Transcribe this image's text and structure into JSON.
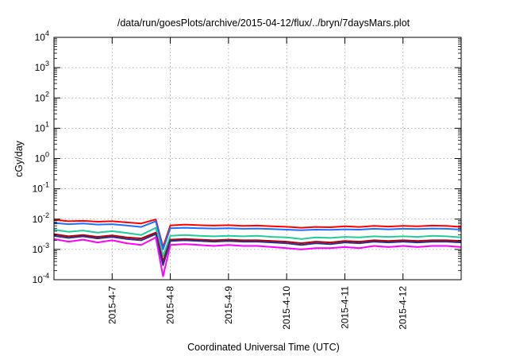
{
  "chart_data": {
    "type": "line",
    "title": "/data/run/goesPlots/archive/2015-04-12/flux/../bryn/7daysMars.plot",
    "xlabel": "Coordinated Universal Time (UTC)",
    "ylabel": "cGy/day",
    "y_scale": "log",
    "ylim": [
      0.0001,
      10000
    ],
    "y_ticks": [
      {
        "base": "10",
        "exp": "-4",
        "value": 0.0001
      },
      {
        "base": "10",
        "exp": "-3",
        "value": 0.001
      },
      {
        "base": "10",
        "exp": "-2",
        "value": 0.01
      },
      {
        "base": "10",
        "exp": "-1",
        "value": 0.1
      },
      {
        "base": "10",
        "exp": "0",
        "value": 1
      },
      {
        "base": "10",
        "exp": "1",
        "value": 10
      },
      {
        "base": "10",
        "exp": "2",
        "value": 100
      },
      {
        "base": "10",
        "exp": "3",
        "value": 1000
      },
      {
        "base": "10",
        "exp": "4",
        "value": 10000
      }
    ],
    "xlim": [
      "2015-04-06 00:00",
      "2015-04-13 00:00"
    ],
    "x_ticks": [
      "2015-4-7",
      "2015-4-8",
      "2015-4-9",
      "2015-4-10",
      "2015-4-11",
      "2015-4-12"
    ],
    "grid": true,
    "x": [
      "2015-04-06 00:00",
      "2015-04-06 06:00",
      "2015-04-06 12:00",
      "2015-04-06 18:00",
      "2015-04-07 00:00",
      "2015-04-07 06:00",
      "2015-04-07 12:00",
      "2015-04-07 18:00",
      "2015-04-07 21:00",
      "2015-04-08 00:00",
      "2015-04-08 06:00",
      "2015-04-08 12:00",
      "2015-04-08 18:00",
      "2015-04-09 00:00",
      "2015-04-09 06:00",
      "2015-04-09 12:00",
      "2015-04-09 18:00",
      "2015-04-10 00:00",
      "2015-04-10 06:00",
      "2015-04-10 12:00",
      "2015-04-10 18:00",
      "2015-04-11 00:00",
      "2015-04-11 06:00",
      "2015-04-11 12:00",
      "2015-04-11 18:00",
      "2015-04-12 00:00",
      "2015-04-12 06:00",
      "2015-04-12 12:00",
      "2015-04-12 18:00",
      "2015-04-13 00:00"
    ],
    "series": [
      {
        "color": "#ff0000",
        "values": [
          0.0095,
          0.0085,
          0.0088,
          0.0082,
          0.0085,
          0.0078,
          0.0072,
          0.0098,
          0.0012,
          0.0062,
          0.0066,
          0.0063,
          0.0061,
          0.0063,
          0.006,
          0.0061,
          0.0058,
          0.0056,
          0.0052,
          0.0055,
          0.0054,
          0.0058,
          0.0055,
          0.006,
          0.0057,
          0.006,
          0.0058,
          0.0061,
          0.006,
          0.0055
        ]
      },
      {
        "color": "#1f6fff",
        "values": [
          0.0075,
          0.0068,
          0.0072,
          0.0066,
          0.0068,
          0.0062,
          0.0055,
          0.0085,
          0.001,
          0.005,
          0.0052,
          0.005,
          0.0049,
          0.005,
          0.0048,
          0.0049,
          0.0047,
          0.0045,
          0.0043,
          0.0045,
          0.0044,
          0.0046,
          0.0045,
          0.0048,
          0.0046,
          0.0048,
          0.0047,
          0.0049,
          0.0048,
          0.0045
        ]
      },
      {
        "color": "#22cc99",
        "values": [
          0.0045,
          0.0038,
          0.0042,
          0.0036,
          0.004,
          0.0035,
          0.003,
          0.0052,
          0.0006,
          0.0028,
          0.003,
          0.0028,
          0.0027,
          0.0028,
          0.0027,
          0.0028,
          0.0026,
          0.0025,
          0.0022,
          0.0025,
          0.0024,
          0.0026,
          0.0025,
          0.0027,
          0.0026,
          0.0027,
          0.0026,
          0.0028,
          0.0027,
          0.0025
        ]
      },
      {
        "color": "#b40000",
        "values": [
          0.0032,
          0.0027,
          0.003,
          0.0026,
          0.0029,
          0.0025,
          0.0023,
          0.0036,
          0.0004,
          0.0021,
          0.0022,
          0.0021,
          0.002,
          0.0021,
          0.002,
          0.002,
          0.0019,
          0.0018,
          0.0016,
          0.0018,
          0.0017,
          0.0019,
          0.0018,
          0.002,
          0.0019,
          0.002,
          0.0019,
          0.002,
          0.002,
          0.0019
        ]
      },
      {
        "color": "#2d2d8c",
        "values": [
          0.0028,
          0.0024,
          0.0027,
          0.0023,
          0.0026,
          0.0022,
          0.002,
          0.0032,
          0.0003,
          0.0019,
          0.002,
          0.0019,
          0.0018,
          0.0019,
          0.0018,
          0.0018,
          0.0017,
          0.0016,
          0.0014,
          0.0016,
          0.0015,
          0.0017,
          0.0016,
          0.0018,
          0.0017,
          0.0018,
          0.0017,
          0.0018,
          0.0018,
          0.0017
        ]
      },
      {
        "color": "#ff00ff",
        "values": [
          0.0022,
          0.0018,
          0.0021,
          0.0017,
          0.002,
          0.0016,
          0.0014,
          0.0025,
          0.00013,
          0.0014,
          0.0015,
          0.0014,
          0.0013,
          0.0014,
          0.0013,
          0.0013,
          0.0012,
          0.0011,
          0.001,
          0.0011,
          0.0011,
          0.0012,
          0.0011,
          0.0013,
          0.0012,
          0.0013,
          0.0012,
          0.0013,
          0.0013,
          0.0012
        ]
      }
    ]
  }
}
